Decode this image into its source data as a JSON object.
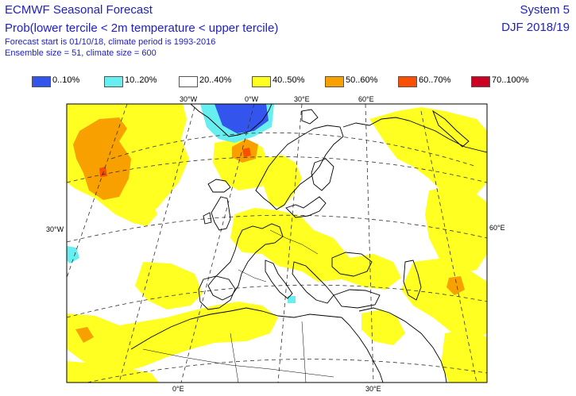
{
  "header": {
    "title": "ECMWF Seasonal Forecast",
    "subtitle": "Prob(lower tercile < 2m temperature < upper tercile)",
    "info_line1": "Forecast start is 01/10/18, climate period is 1993-2016",
    "info_line2": "Ensemble size = 51, climate size = 600",
    "system": "System 5",
    "season": "DJF 2018/19"
  },
  "legend": [
    {
      "label": "0..10%",
      "color": "#3355ee"
    },
    {
      "label": "10..20%",
      "color": "#66eef0"
    },
    {
      "label": "20..40%",
      "color": "#ffffff"
    },
    {
      "label": "40..50%",
      "color": "#ffff22"
    },
    {
      "label": "50..60%",
      "color": "#f8a000"
    },
    {
      "label": "60..70%",
      "color": "#f85000"
    },
    {
      "label": "70..100%",
      "color": "#cc0022"
    }
  ],
  "map": {
    "top_labels": [
      "30°W",
      "0°W",
      "30°E",
      "60°E"
    ],
    "bottom_labels": [
      "0°E",
      "30°E"
    ],
    "left_label": "30°W",
    "right_label": "60°E"
  }
}
